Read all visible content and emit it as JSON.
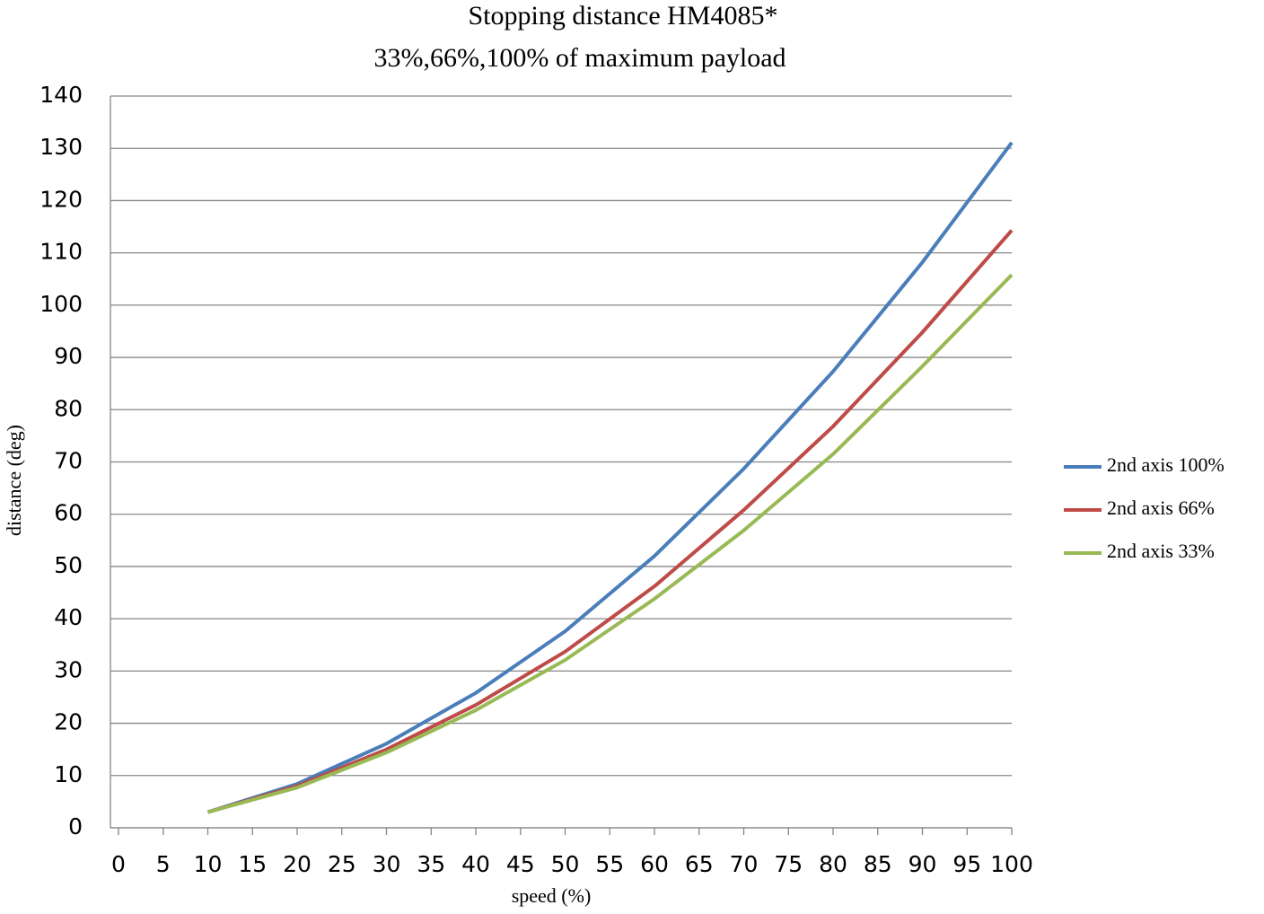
{
  "chart_data": {
    "type": "line",
    "title": "Stopping distance HM4085*",
    "subtitle": "33%,66%,100% of maximum payload",
    "x_label": "speed (%)",
    "y_label": "distance (deg)",
    "x": [
      10,
      20,
      30,
      40,
      50,
      60,
      70,
      80,
      90,
      100
    ],
    "series": [
      {
        "name": "2nd axis 100%",
        "color": "#4a7ebb",
        "values": [
          3,
          8.4,
          16.1,
          25.8,
          37.6,
          52,
          68.7,
          87.3,
          108.2,
          131.1
        ]
      },
      {
        "name": "2nd axis 66%",
        "color": "#be4b48",
        "values": [
          3,
          8,
          15,
          23.5,
          33.7,
          46.2,
          60.8,
          76.8,
          94.8,
          114.3
        ]
      },
      {
        "name": "2nd axis 33%",
        "color": "#98b954",
        "values": [
          3,
          7.7,
          14.4,
          22.5,
          32.1,
          43.8,
          56.9,
          71.5,
          88.3,
          105.8
        ]
      }
    ],
    "xlim": [
      0,
      100
    ],
    "xticks": [
      0,
      5,
      10,
      15,
      20,
      25,
      30,
      35,
      40,
      45,
      50,
      55,
      60,
      65,
      70,
      75,
      80,
      85,
      90,
      95,
      100
    ],
    "ylim": [
      0,
      140
    ],
    "yticks": [
      0,
      10,
      20,
      30,
      40,
      50,
      60,
      70,
      80,
      90,
      100,
      110,
      120,
      130,
      140
    ],
    "grid": true,
    "legend": "right"
  }
}
